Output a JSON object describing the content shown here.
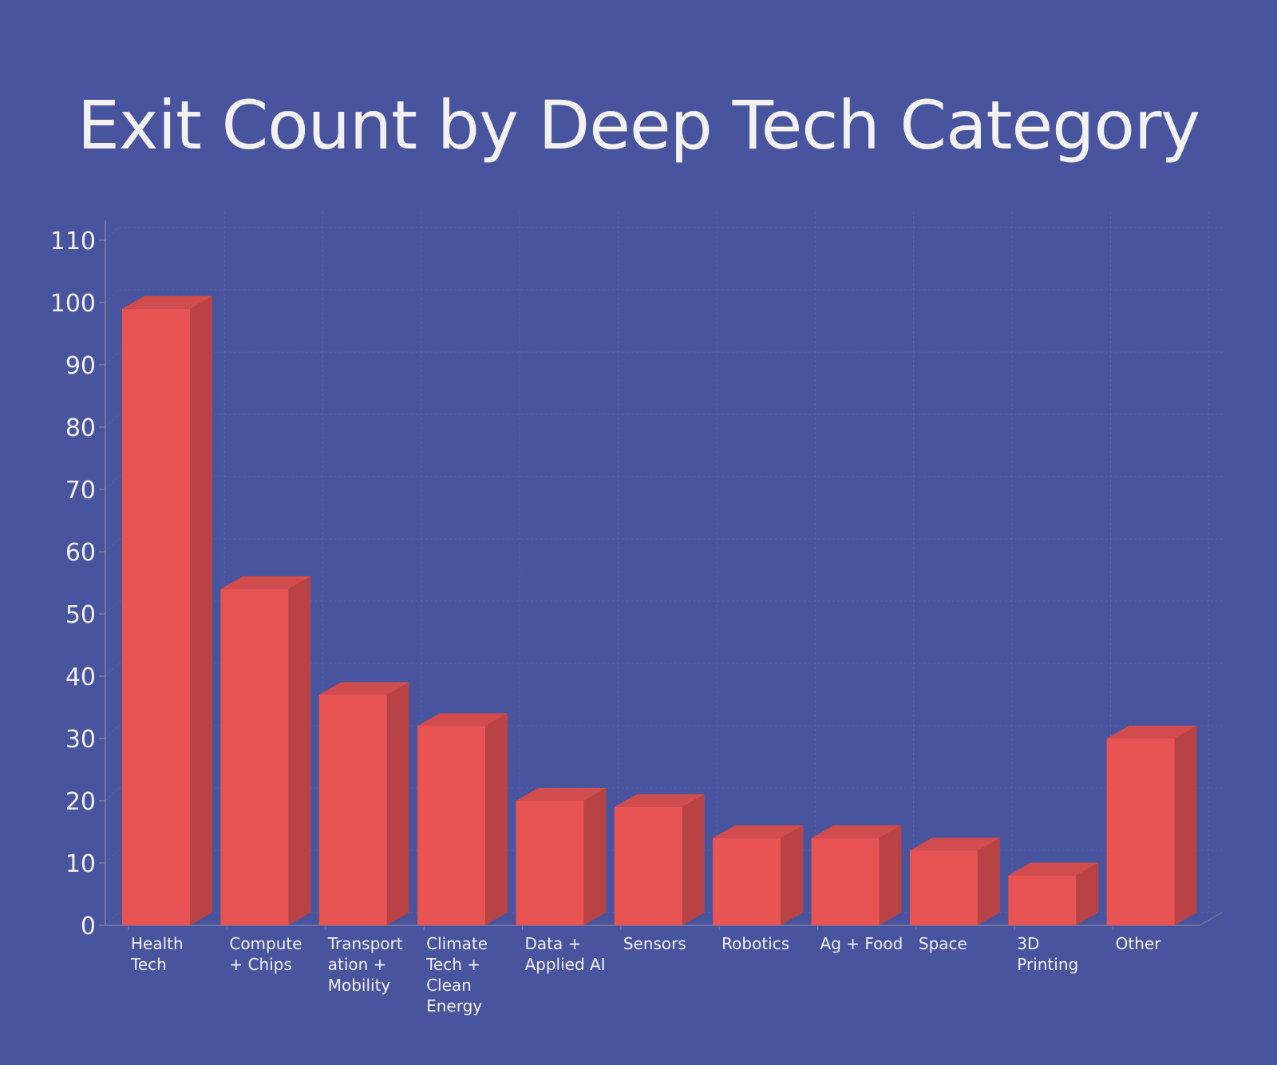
{
  "chart_data": {
    "type": "bar",
    "title": "Exit Count by Deep Tech Category",
    "xlabel": "",
    "ylabel": "",
    "ylim": [
      0,
      110
    ],
    "yticks": [
      0,
      10,
      20,
      30,
      40,
      50,
      60,
      70,
      80,
      90,
      100,
      110
    ],
    "grid": true,
    "style": "3d",
    "categories": [
      [
        "Health",
        "Tech"
      ],
      [
        "Compute",
        "+ Chips"
      ],
      [
        "Transport",
        "ation +",
        "Mobility"
      ],
      [
        "Climate",
        "Tech +",
        "Clean",
        "Energy"
      ],
      [
        "Data +",
        "Applied AI"
      ],
      [
        "Sensors"
      ],
      [
        "Robotics"
      ],
      [
        "Ag + Food"
      ],
      [
        "Space"
      ],
      [
        "3D",
        "Printing"
      ],
      [
        "Other"
      ]
    ],
    "values": [
      99,
      54,
      37,
      32,
      20,
      19,
      14,
      14,
      12,
      8,
      30
    ],
    "colors": {
      "background": "#48549e",
      "bar_front": "#e85454",
      "bar_side": "#b94244",
      "bar_top": "#d14c4c",
      "grid": "#5a62a8",
      "axis": "#7a7f9c"
    }
  }
}
